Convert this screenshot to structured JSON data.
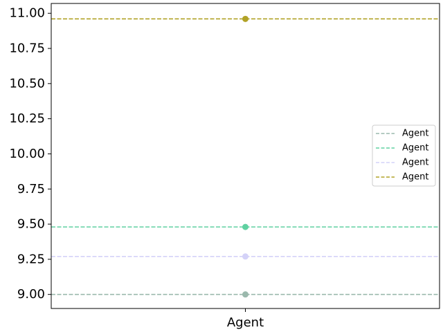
{
  "chart_data": {
    "type": "scatter",
    "categories": [
      "Agent"
    ],
    "ylim": [
      8.9,
      11.07
    ],
    "yticks": [
      9.0,
      9.25,
      9.5,
      9.75,
      10.0,
      10.25,
      10.5,
      10.75,
      11.0
    ],
    "ytick_labels": [
      "9.00",
      "9.25",
      "9.50",
      "9.75",
      "10.00",
      "10.25",
      "10.50",
      "10.75",
      "11.00"
    ],
    "grid": false,
    "legend_position": "center-right",
    "series": [
      {
        "name": "Agent",
        "values": [
          9.0
        ],
        "color": "#9bb9ad",
        "line": "dashed-horizontal"
      },
      {
        "name": "Agent",
        "values": [
          9.48
        ],
        "color": "#5fd1a1",
        "line": "dashed-horizontal"
      },
      {
        "name": "Agent",
        "values": [
          9.27
        ],
        "color": "#d4d2f8",
        "line": "dashed-horizontal"
      },
      {
        "name": "Agent",
        "values": [
          10.96
        ],
        "color": "#b1a226",
        "line": "dashed-horizontal"
      }
    ]
  }
}
